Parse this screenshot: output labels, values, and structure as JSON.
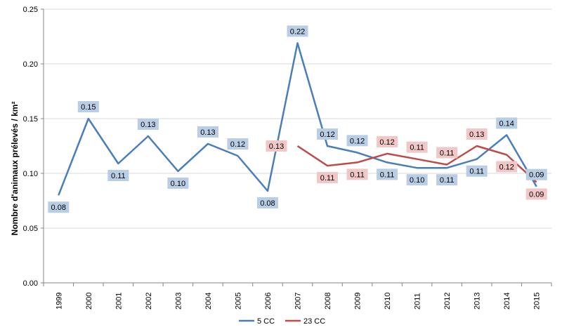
{
  "chart_data": {
    "type": "line",
    "title": "",
    "xlabel": "",
    "ylabel": "Nombre d'animaux prélevés / km²",
    "ylim": [
      0,
      0.25
    ],
    "yticks": [
      "0.00",
      "0.05",
      "0.10",
      "0.15",
      "0.20",
      "0.25"
    ],
    "grid": true,
    "legend_position": "bottom",
    "categories": [
      "1999",
      "2000",
      "2001",
      "2002",
      "2003",
      "2004",
      "2005",
      "2006",
      "2007",
      "2008",
      "2009",
      "2010",
      "2011",
      "2012",
      "2013",
      "2014",
      "2015"
    ],
    "series": [
      {
        "name": "5 CC",
        "color": "#4a7ebb",
        "label_bg": "#b9cde5",
        "values": [
          0.08,
          0.15,
          0.109,
          0.134,
          0.102,
          0.127,
          0.116,
          0.084,
          0.219,
          0.125,
          0.119,
          0.11,
          0.105,
          0.105,
          0.113,
          0.135,
          0.088
        ],
        "labels": [
          "0.08",
          "0.15",
          "0.11",
          "0.13",
          "0.10",
          "0.13",
          "0.12",
          "0.08",
          "0.22",
          "0.12",
          "0.12",
          "0.11",
          "0.10",
          "0.11",
          "0.11",
          "0.14",
          "0.09"
        ],
        "label_pos": [
          "below",
          "above",
          "below",
          "above",
          "below",
          "above",
          "above",
          "below",
          "above",
          "above",
          "above",
          "below",
          "below",
          "below",
          "below",
          "above",
          "above"
        ]
      },
      {
        "name": "23 CC",
        "color": "#be4b48",
        "label_bg": "#f2c7c7",
        "values": [
          null,
          null,
          null,
          null,
          null,
          null,
          null,
          null,
          0.125,
          0.107,
          0.11,
          0.118,
          0.113,
          0.108,
          0.125,
          0.117,
          0.092
        ],
        "labels": [
          null,
          null,
          null,
          null,
          null,
          null,
          null,
          null,
          "0.13",
          "0.11",
          "0.11",
          "0.12",
          "0.11",
          "0.11",
          "0.13",
          "0.12",
          "0.09"
        ],
        "label_pos": [
          null,
          null,
          null,
          null,
          null,
          null,
          null,
          null,
          "left",
          "below",
          "below",
          "above",
          "above",
          "above",
          "above",
          "below",
          "below"
        ]
      }
    ]
  }
}
